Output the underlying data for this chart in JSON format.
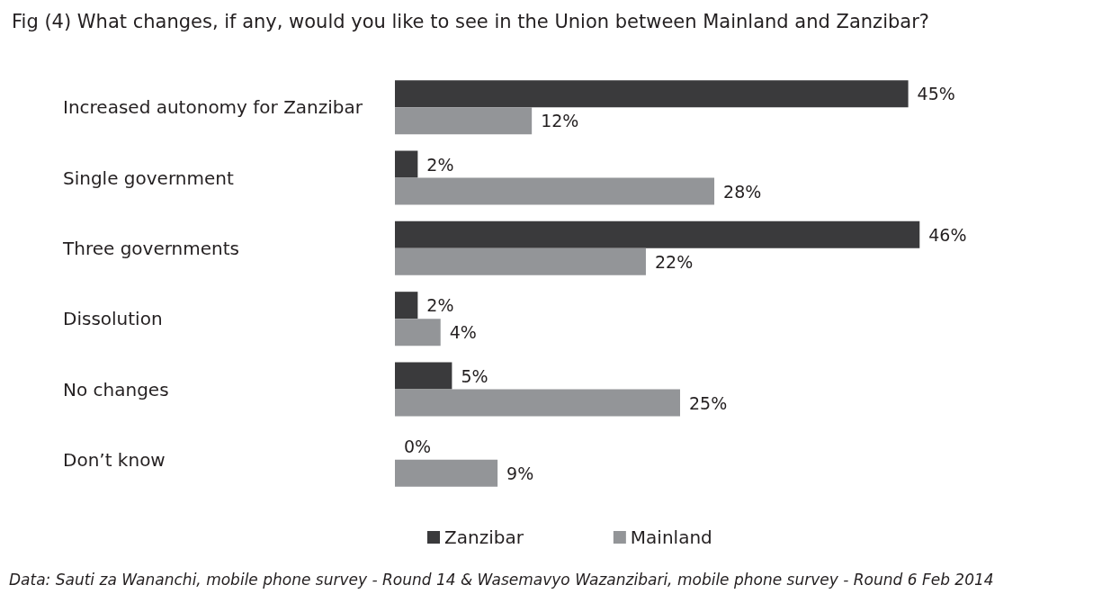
{
  "chart_data": {
    "type": "bar",
    "orientation": "horizontal",
    "title": "Fig (4) What changes, if any, would you like to see in the Union between Mainland and Zanzibar?",
    "categories": [
      "Increased autonomy for Zanzibar",
      "Single government",
      "Three governments",
      "Dissolution",
      "No changes",
      "Don’t know"
    ],
    "series": [
      {
        "name": "Zanzibar",
        "color": "#3a3a3c",
        "values": [
          45,
          2,
          46,
          2,
          5,
          0
        ],
        "value_labels": [
          "45%",
          "2%",
          "46%",
          "2%",
          "5%",
          "0%"
        ]
      },
      {
        "name": "Mainland",
        "color": "#939598",
        "values": [
          12,
          28,
          22,
          4,
          25,
          9
        ],
        "value_labels": [
          "12%",
          "28%",
          "22%",
          "4%",
          "25%",
          "9%"
        ]
      }
    ],
    "legend": "bottom",
    "tick_labels": "y",
    "annotations": [
      "Data: Sauti za Wananchi, mobile phone survey - Round 14 & Wasemavyo Wazanzibari, mobile phone survey - Round 6 Feb 2014"
    ]
  }
}
